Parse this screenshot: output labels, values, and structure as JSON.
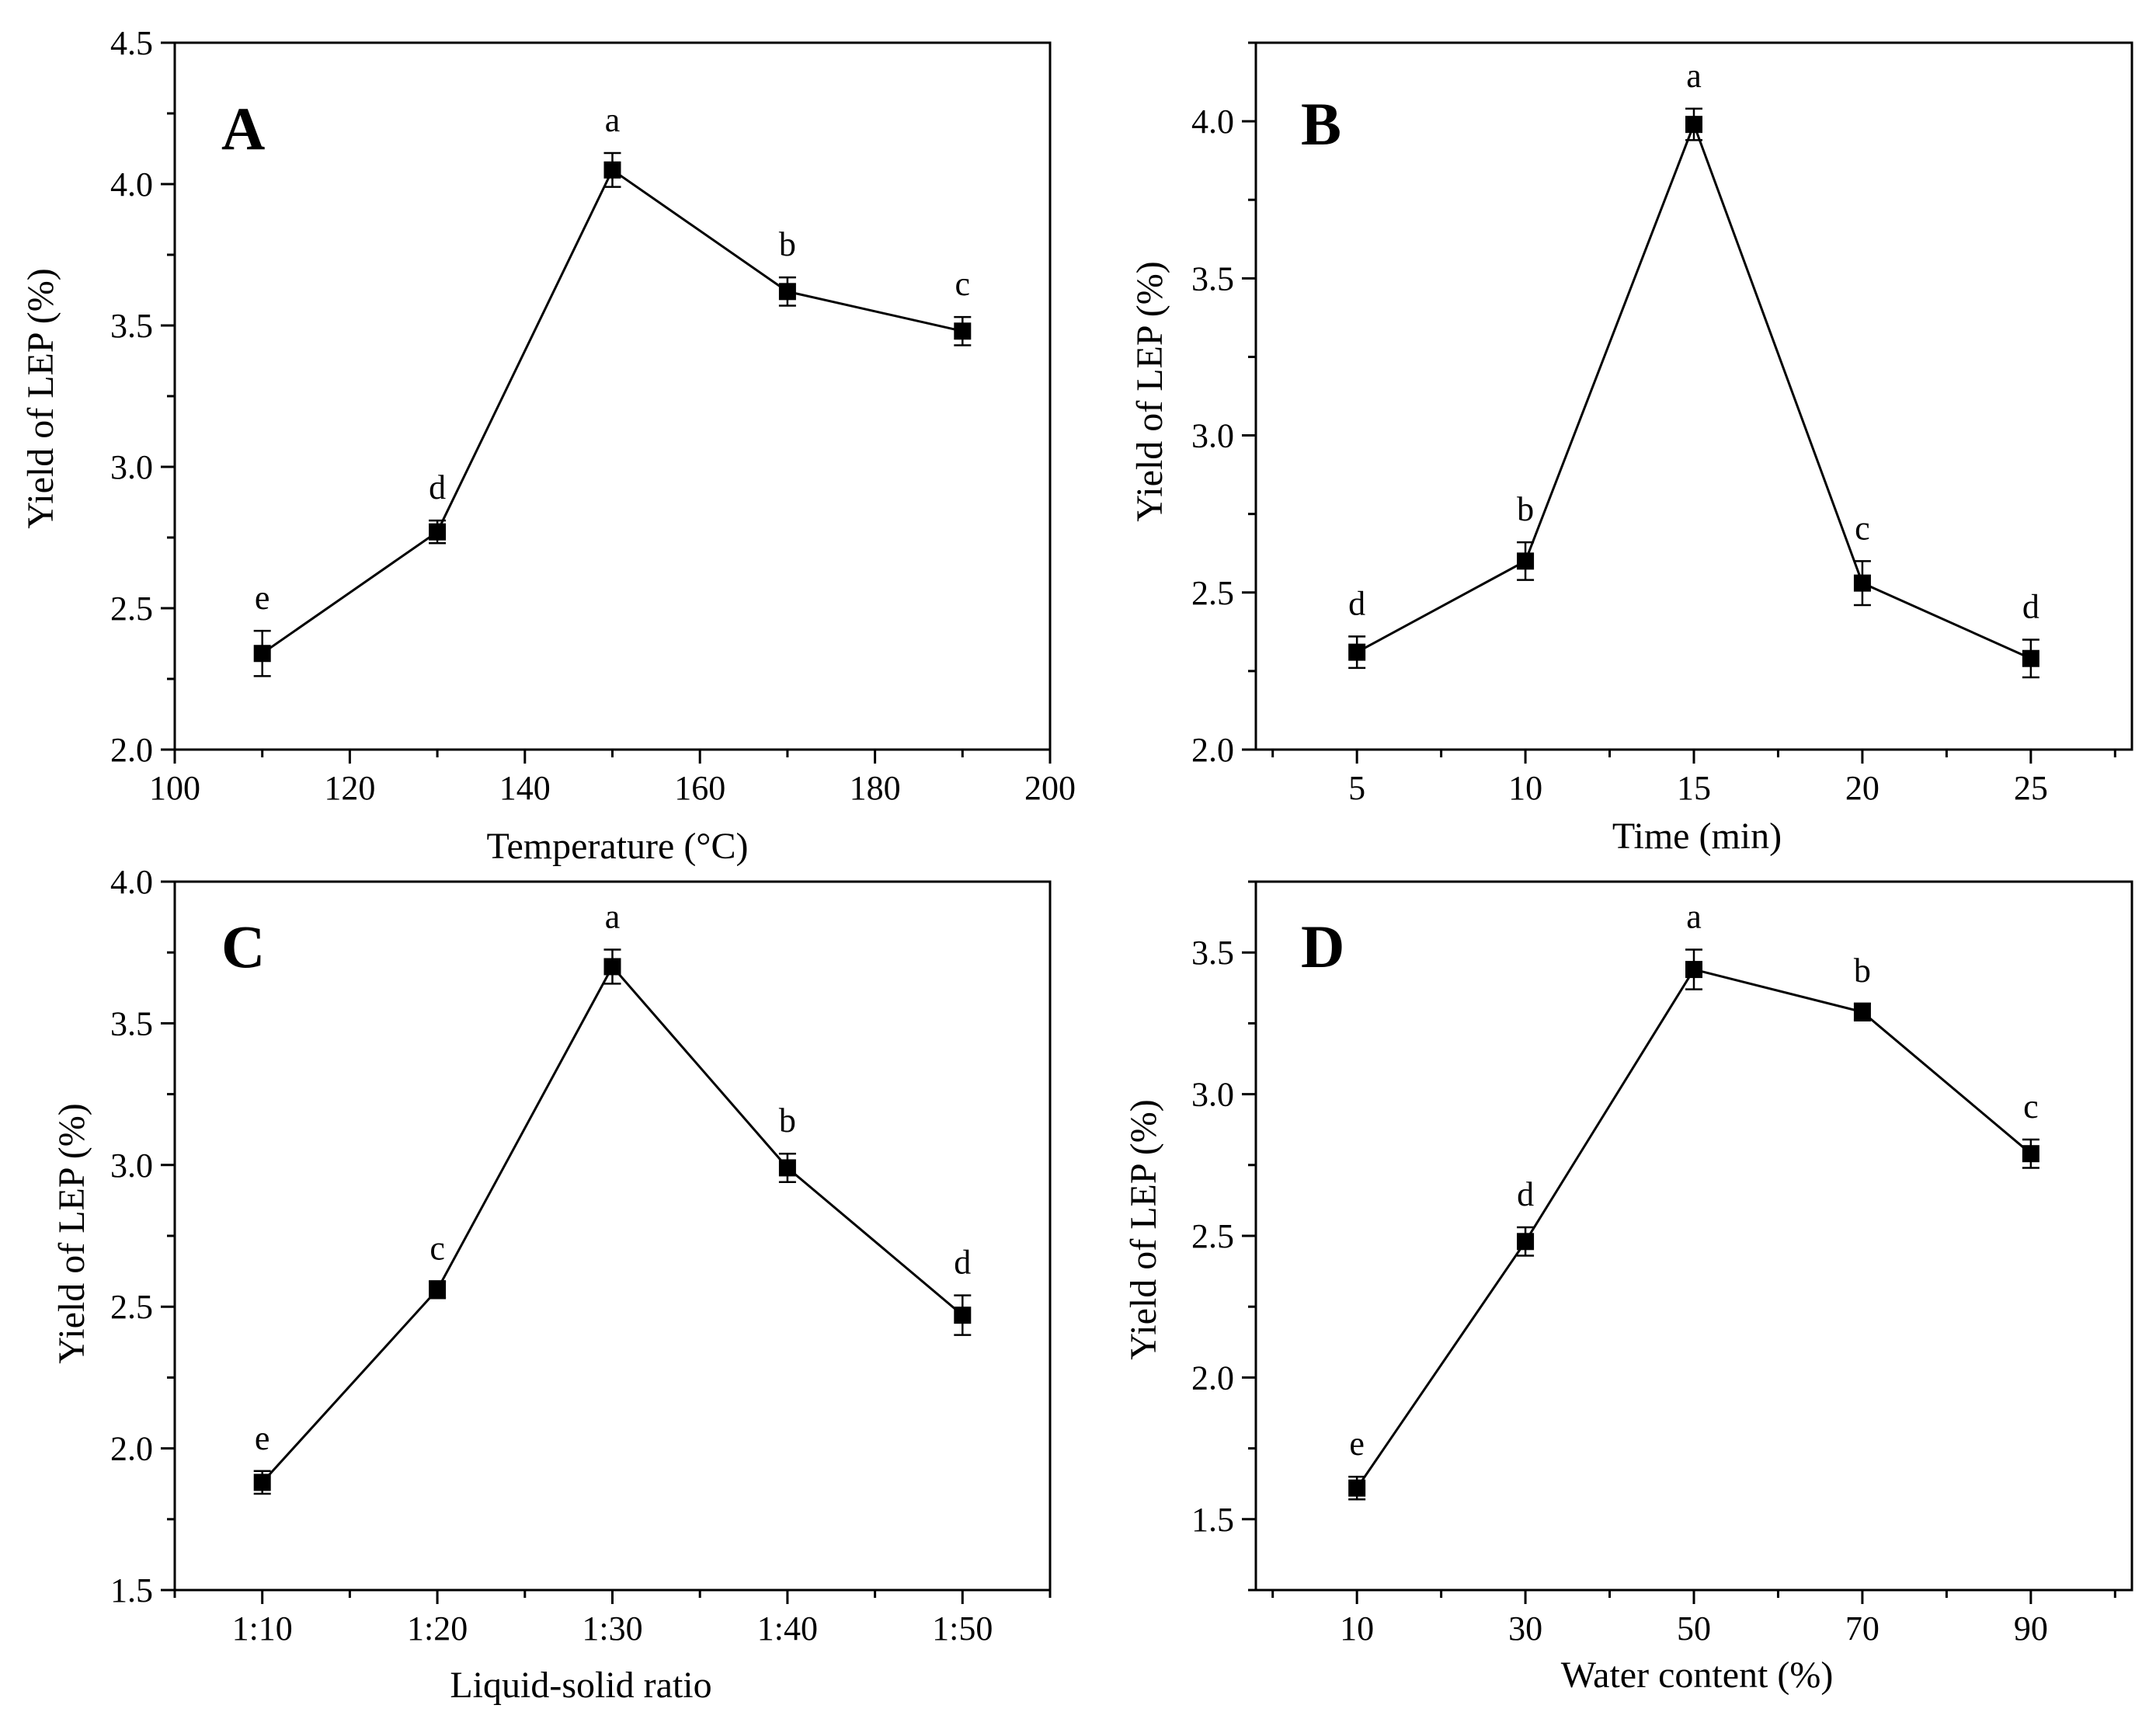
{
  "figure": {
    "colors": {
      "line": "#000000",
      "marker": "#000000",
      "background": "#ffffff"
    }
  },
  "chart_data": [
    {
      "type": "line",
      "panel_letter": "A",
      "xlabel": "Temperature (°C)",
      "ylabel": "Yield of LEP (%)",
      "xlim": [
        100,
        200
      ],
      "ylim": [
        2.0,
        4.5
      ],
      "x_ticks": [
        100,
        120,
        140,
        160,
        180,
        200
      ],
      "x_tick_labels": [
        "100",
        "120",
        "140",
        "160",
        "180",
        "200"
      ],
      "y_ticks": [
        2.0,
        2.5,
        3.0,
        3.5,
        4.0,
        4.5
      ],
      "y_tick_labels": [
        "2.0",
        "2.5",
        "3.0",
        "3.5",
        "4.0",
        "4.5"
      ],
      "x": [
        110,
        130,
        150,
        170,
        190
      ],
      "values": [
        2.34,
        2.77,
        4.05,
        3.62,
        3.48
      ],
      "errors": [
        0.08,
        0.04,
        0.06,
        0.05,
        0.05
      ],
      "labels": [
        "e",
        "d",
        "a",
        "b",
        "c"
      ]
    },
    {
      "type": "line",
      "panel_letter": "B",
      "xlabel": "Time (min)",
      "ylabel": "Yield of LEP (%)",
      "xlim": [
        2,
        28
      ],
      "ylim": [
        2.0,
        4.25
      ],
      "x_ticks": [
        5,
        10,
        15,
        20,
        25
      ],
      "x_tick_labels": [
        "5",
        "10",
        "15",
        "20",
        "25"
      ],
      "y_ticks": [
        2.0,
        2.5,
        3.0,
        3.5,
        4.0
      ],
      "y_tick_labels": [
        "2.0",
        "2.5",
        "3.0",
        "3.5",
        "4.0"
      ],
      "x": [
        5,
        10,
        15,
        20,
        25
      ],
      "values": [
        2.31,
        2.6,
        3.99,
        2.53,
        2.29
      ],
      "errors": [
        0.05,
        0.06,
        0.05,
        0.07,
        0.06
      ],
      "labels": [
        "d",
        "b",
        "a",
        "c",
        "d"
      ]
    },
    {
      "type": "line",
      "panel_letter": "C",
      "xlabel": "Liquid-solid ratio",
      "ylabel": "Yield of LEP (%)",
      "xlim": [
        0.5,
        5.5
      ],
      "ylim": [
        1.5,
        4.0
      ],
      "x_ticks": [
        1,
        2,
        3,
        4,
        5
      ],
      "x_tick_labels": [
        "1:10",
        "1:20",
        "1:30",
        "1:40",
        "1:50"
      ],
      "y_ticks": [
        1.5,
        2.0,
        2.5,
        3.0,
        3.5,
        4.0
      ],
      "y_tick_labels": [
        "1.5",
        "2.0",
        "2.5",
        "3.0",
        "3.5",
        "4.0"
      ],
      "x": [
        1,
        2,
        3,
        4,
        5
      ],
      "values": [
        1.88,
        2.56,
        3.7,
        2.99,
        2.47
      ],
      "errors": [
        0.04,
        0.03,
        0.06,
        0.05,
        0.07
      ],
      "labels": [
        "e",
        "c",
        "a",
        "b",
        "d"
      ]
    },
    {
      "type": "line",
      "panel_letter": "D",
      "xlabel": "Water content (%)",
      "ylabel": "Yield of LEP (%)",
      "xlim": [
        -2,
        102
      ],
      "ylim": [
        1.25,
        3.75
      ],
      "x_ticks": [
        10,
        30,
        50,
        70,
        90
      ],
      "x_tick_labels": [
        "10",
        "30",
        "50",
        "70",
        "90"
      ],
      "y_ticks": [
        1.5,
        2.0,
        2.5,
        3.0,
        3.5
      ],
      "y_tick_labels": [
        "1.5",
        "2.0",
        "2.5",
        "3.0",
        "3.5"
      ],
      "x": [
        10,
        30,
        50,
        70,
        90
      ],
      "values": [
        1.61,
        2.48,
        3.44,
        3.29,
        2.79
      ],
      "errors": [
        0.04,
        0.05,
        0.07,
        0.03,
        0.05
      ],
      "labels": [
        "e",
        "d",
        "a",
        "b",
        "c"
      ]
    }
  ]
}
